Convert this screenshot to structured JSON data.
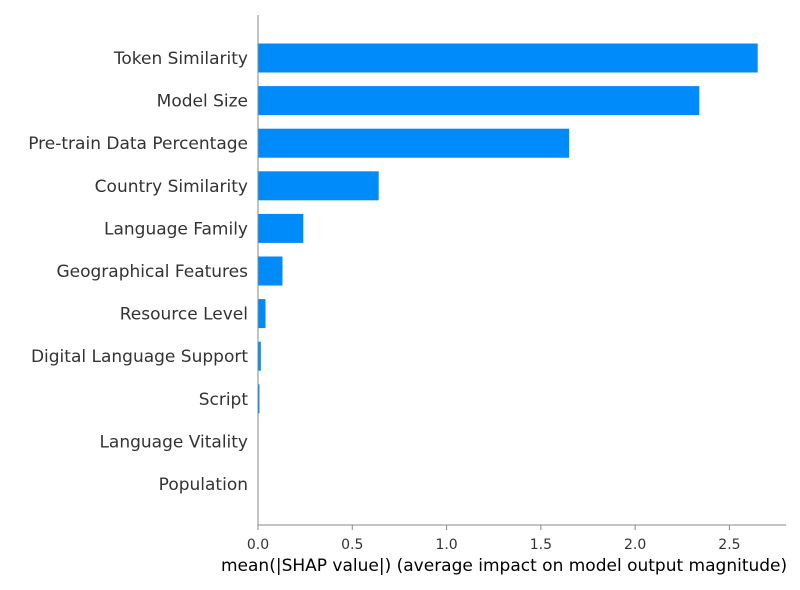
{
  "chart_data": {
    "type": "bar",
    "orientation": "horizontal",
    "categories": [
      "Token Similarity",
      "Model Size",
      "Pre-train Data Percentage",
      "Country Similarity",
      "Language Family",
      "Geographical Features",
      "Resource Level",
      "Digital Language Support",
      "Script",
      "Language Vitality",
      "Population"
    ],
    "values": [
      2.65,
      2.34,
      1.65,
      0.64,
      0.24,
      0.13,
      0.04,
      0.015,
      0.008,
      0.0,
      0.0
    ],
    "xlabel": "mean(|SHAP value|) (average impact on model output magnitude)",
    "ylabel": "",
    "xlim": [
      0,
      2.8
    ],
    "xticks": [
      "0.0",
      "0.5",
      "1.0",
      "1.5",
      "2.0",
      "2.5"
    ],
    "grid": false,
    "bar_color": "#008bfb",
    "axis_color": "#888888",
    "text_color": "#333333"
  }
}
